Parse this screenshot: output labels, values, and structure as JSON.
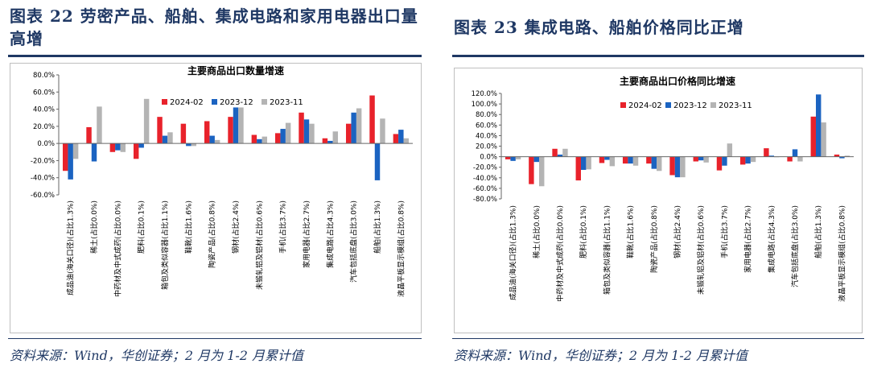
{
  "colors": {
    "series_a": "#e8222b",
    "series_b": "#1b63c1",
    "series_c": "#b4b4b4",
    "title": "#1f3864"
  },
  "left": {
    "figure_title": "图表 22   劳密产品、船舶、集成电路和家用电器出口量高增",
    "source": "资料来源：Wind，华创证券；2 月为 1-2 月累计值",
    "chart_data": {
      "type": "bar",
      "title": "主要商品出口数量增速",
      "ylim": [
        -60,
        80
      ],
      "yticks": [
        "80.0%",
        "60.0%",
        "40.0%",
        "20.0%",
        "0.0%",
        "-20.0%",
        "-40.0%",
        "-60.0%"
      ],
      "categories": [
        "成品油(海关口径)(占比1.3%)",
        "稀土(占比0.0%)",
        "中药材及中式成药(占比0.0%)",
        "肥料(占比0.1%)",
        "箱包及类似容器(占比1.1%)",
        "鞋靴(占比1.6%)",
        "陶瓷产品(占比0.8%)",
        "钢材(占比2.4%)",
        "未锻轧铝及铝材(占比0.6%)",
        "手机(占比3.7%)",
        "家用电器(占比2.7%)",
        "集成电路(占比4.3%)",
        "汽车包括底盘(占比3.0%)",
        "船舶(占比1.3%)",
        "液晶平板显示模组(占比0.8%)"
      ],
      "series": [
        {
          "name": "2024-02",
          "values": [
            -32,
            19,
            -10,
            -18,
            31,
            23,
            26,
            31,
            10,
            12,
            36,
            6,
            23,
            56,
            11
          ]
        },
        {
          "name": "2023-12",
          "values": [
            -42,
            -21,
            -8,
            -5,
            9,
            -3,
            9,
            42,
            5,
            17,
            28,
            3,
            36,
            -43,
            16
          ]
        },
        {
          "name": "2023-11",
          "values": [
            -18,
            43,
            -10,
            52,
            13,
            -3,
            4,
            42,
            8,
            24,
            23,
            14,
            41,
            29,
            6
          ]
        }
      ]
    }
  },
  "right": {
    "figure_title": "图表 23   集成电路、船舶价格同比正增",
    "source": "资料来源：Wind，华创证券；2 月为 1-2 月累计值",
    "chart_data": {
      "type": "bar",
      "title": "主要商品出口价格同比增速",
      "ylim": [
        -80,
        120
      ],
      "yticks": [
        "120.0%",
        "100.0%",
        "80.0%",
        "60.0%",
        "40.0%",
        "20.0%",
        "0.0%",
        "-20.0%",
        "-40.0%",
        "-60.0%",
        "-80.0%"
      ],
      "categories": [
        "成品油(海关口径)(占比1.3%)",
        "稀土(占比0.0%)",
        "中药材及中式成药(占比0.0%)",
        "肥料(占比0.1%)",
        "箱包及类似容器(占比1.1%)",
        "鞋靴(占比1.6%)",
        "陶瓷产品(占比0.8%)",
        "钢材(占比2.4%)",
        "未锻轧铝及铝材(占比0.6%)",
        "手机(占比3.7%)",
        "家用电器(占比2.7%)",
        "集成电路(占比4.3%)",
        "汽车包括底盘(占比3.0%)",
        "船舶(占比1.3%)",
        "液晶平板显示模组(占比0.8%)"
      ],
      "series": [
        {
          "name": "2024-02",
          "values": [
            -5,
            -52,
            15,
            -45,
            -12,
            -13,
            -13,
            -35,
            -9,
            -26,
            -15,
            16,
            -9,
            76,
            4
          ]
        },
        {
          "name": "2023-12",
          "values": [
            -8,
            -10,
            4,
            -25,
            -6,
            -13,
            -23,
            -39,
            -7,
            -17,
            -13,
            2,
            14,
            118,
            -3
          ]
        },
        {
          "name": "2023-11",
          "values": [
            -5,
            -56,
            15,
            -24,
            -18,
            -17,
            -27,
            -39,
            -11,
            25,
            -10,
            -1,
            -9,
            65,
            2
          ]
        }
      ]
    }
  }
}
